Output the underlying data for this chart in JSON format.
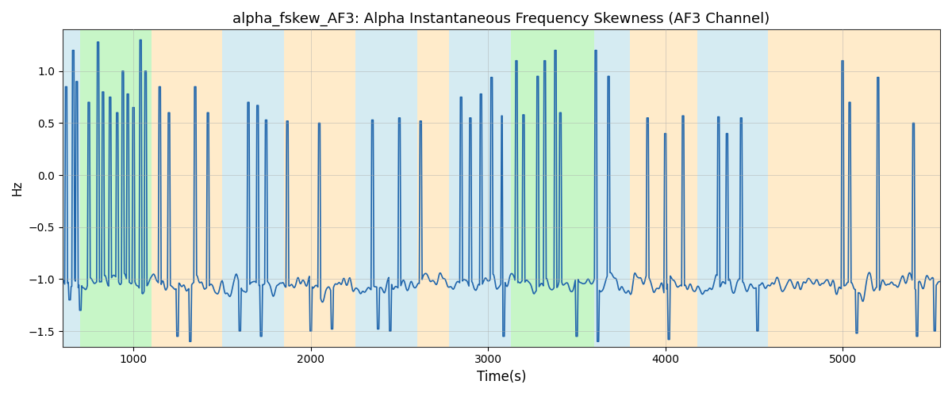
{
  "title": "alpha_fskew_AF3: Alpha Instantaneous Frequency Skewness (AF3 Channel)",
  "xlabel": "Time(s)",
  "ylabel": "Hz",
  "xlim": [
    600,
    5550
  ],
  "ylim": [
    -1.65,
    1.4
  ],
  "yticks": [
    -1.5,
    -1.0,
    -0.5,
    0.0,
    0.5,
    1.0
  ],
  "xticks": [
    1000,
    2000,
    3000,
    4000,
    5000
  ],
  "line_color": "#2166ac",
  "line_width": 1.2,
  "bg_color": "#ffffff",
  "grid_color": "#aaaaaa",
  "regions": [
    {
      "start": 600,
      "end": 700,
      "color": "#add8e6",
      "alpha": 0.5
    },
    {
      "start": 700,
      "end": 1100,
      "color": "#90ee90",
      "alpha": 0.5
    },
    {
      "start": 1100,
      "end": 1500,
      "color": "#ffdba0",
      "alpha": 0.55
    },
    {
      "start": 1500,
      "end": 1850,
      "color": "#add8e6",
      "alpha": 0.5
    },
    {
      "start": 1850,
      "end": 2250,
      "color": "#ffdba0",
      "alpha": 0.55
    },
    {
      "start": 2250,
      "end": 2600,
      "color": "#add8e6",
      "alpha": 0.5
    },
    {
      "start": 2600,
      "end": 2780,
      "color": "#ffdba0",
      "alpha": 0.55
    },
    {
      "start": 2780,
      "end": 3060,
      "color": "#add8e6",
      "alpha": 0.5
    },
    {
      "start": 3060,
      "end": 3130,
      "color": "#add8e6",
      "alpha": 0.5
    },
    {
      "start": 3130,
      "end": 3600,
      "color": "#90ee90",
      "alpha": 0.5
    },
    {
      "start": 3600,
      "end": 3800,
      "color": "#add8e6",
      "alpha": 0.5
    },
    {
      "start": 3800,
      "end": 4180,
      "color": "#ffdba0",
      "alpha": 0.55
    },
    {
      "start": 4180,
      "end": 4580,
      "color": "#add8e6",
      "alpha": 0.5
    },
    {
      "start": 4580,
      "end": 4900,
      "color": "#ffdba0",
      "alpha": 0.55
    },
    {
      "start": 4900,
      "end": 5550,
      "color": "#ffdba0",
      "alpha": 0.55
    }
  ],
  "figsize": [
    12.0,
    5.0
  ],
  "dpi": 100
}
